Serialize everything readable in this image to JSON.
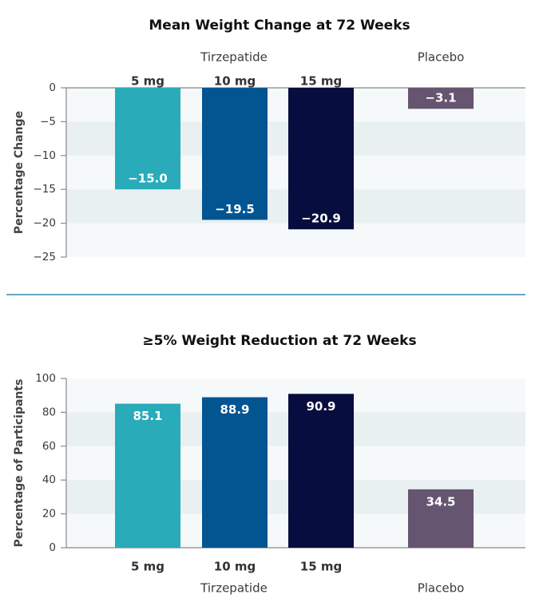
{
  "chart_data": [
    {
      "type": "bar",
      "title": "Mean Weight Change at 72 Weeks",
      "ylabel": "Percentage Change",
      "xlabel": "",
      "groups": [
        {
          "label": "Tirzepatide",
          "members": [
            "5 mg",
            "10 mg",
            "15 mg"
          ]
        },
        {
          "label": "Placebo",
          "members": [
            "Placebo"
          ]
        }
      ],
      "categories": [
        "5 mg",
        "10 mg",
        "15 mg",
        "Placebo"
      ],
      "category_labels": [
        "5 mg",
        "10 mg",
        "15 mg",
        ""
      ],
      "values": [
        -15.0,
        -19.5,
        -20.9,
        -3.1
      ],
      "data_labels": [
        "−15.0",
        "−19.5",
        "−20.9",
        "−3.1"
      ],
      "colors": [
        "#29abb9",
        "#035592",
        "#070d3e",
        "#655570"
      ],
      "ylim": [
        -25,
        0
      ],
      "yticks": [
        0,
        -5,
        -10,
        -15,
        -20,
        -25
      ],
      "ytick_labels": [
        "0",
        "−5",
        "−10",
        "−15",
        "−20",
        "−25"
      ],
      "label_position": "top",
      "grid": "alternating bands"
    },
    {
      "type": "bar",
      "title": "≥5% Weight Reduction at 72 Weeks",
      "ylabel": "Percentage of Participants",
      "xlabel": "",
      "groups": [
        {
          "label": "Tirzepatide",
          "members": [
            "5 mg",
            "10 mg",
            "15 mg"
          ]
        },
        {
          "label": "Placebo",
          "members": [
            "Placebo"
          ]
        }
      ],
      "categories": [
        "5 mg",
        "10 mg",
        "15 mg",
        "Placebo"
      ],
      "category_labels": [
        "5 mg",
        "10 mg",
        "15 mg",
        ""
      ],
      "values": [
        85.1,
        88.9,
        90.9,
        34.5
      ],
      "data_labels": [
        "85.1",
        "88.9",
        "90.9",
        "34.5"
      ],
      "colors": [
        "#29abb9",
        "#035592",
        "#070d3e",
        "#655570"
      ],
      "ylim": [
        0,
        100
      ],
      "yticks": [
        0,
        20,
        40,
        60,
        80,
        100
      ],
      "ytick_labels": [
        "0",
        "20",
        "40",
        "60",
        "80",
        "100"
      ],
      "label_position": "bottom",
      "grid": "alternating bands"
    }
  ],
  "colors": {
    "band": "#e9f0f2",
    "plot_bg": "#f6f9fa",
    "divider": "#3b86b4",
    "axis": "#888888"
  }
}
